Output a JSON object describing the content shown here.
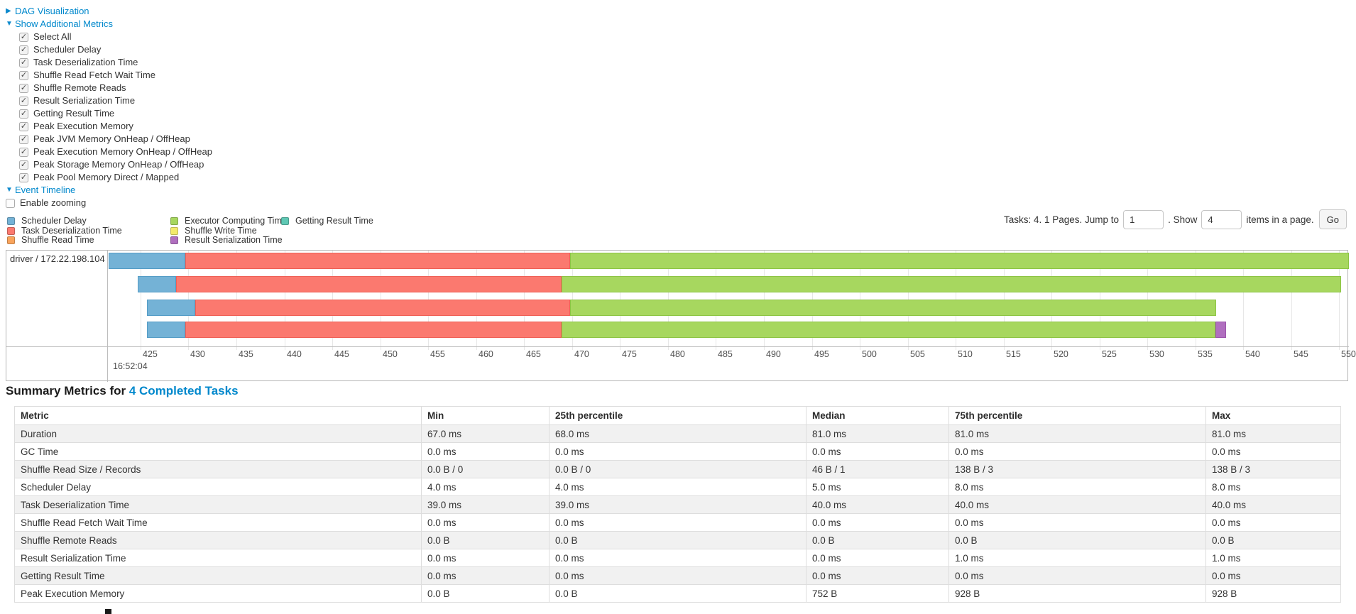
{
  "toggles": {
    "dag": {
      "label": "DAG Visualization",
      "state": "collapsed"
    },
    "metrics": {
      "label": "Show Additional Metrics",
      "state": "expanded"
    },
    "timeline": {
      "label": "Event Timeline",
      "state": "expanded"
    }
  },
  "metrics_panel": {
    "items": [
      "Select All",
      "Scheduler Delay",
      "Task Deserialization Time",
      "Shuffle Read Fetch Wait Time",
      "Shuffle Remote Reads",
      "Result Serialization Time",
      "Getting Result Time",
      "Peak Execution Memory",
      "Peak JVM Memory OnHeap / OffHeap",
      "Peak Execution Memory OnHeap / OffHeap",
      "Peak Storage Memory OnHeap / OffHeap",
      "Peak Pool Memory Direct / Mapped"
    ],
    "all_checked": true
  },
  "enable_zooming": {
    "label": "Enable zooming",
    "checked": false
  },
  "legend": {
    "columns": [
      [
        {
          "label": "Scheduler Delay",
          "color": "#74b2d6"
        },
        {
          "label": "Task Deserialization Time",
          "color": "#fb796f"
        },
        {
          "label": "Shuffle Read Time",
          "color": "#f9a45c"
        }
      ],
      [
        {
          "label": "Executor Computing Time",
          "color": "#a7d75f"
        },
        {
          "label": "Shuffle Write Time",
          "color": "#f3eb6c"
        },
        {
          "label": "Result Serialization Time",
          "color": "#b06fbf"
        }
      ],
      [
        {
          "label": "Getting Result Time",
          "color": "#5fc8b4"
        }
      ]
    ]
  },
  "pagination": {
    "tasks_text": "Tasks: 4. 1 Pages. Jump to",
    "jump_value": "1",
    "show_label": ". Show",
    "show_value": "4",
    "items_text": "items in a page.",
    "go_label": "Go"
  },
  "chart_data": {
    "type": "timeline",
    "group_label": "driver / 172.22.198.104",
    "axis": {
      "start": 421.6,
      "end": 551.0,
      "tick_start": 425,
      "tick_end": 550,
      "tick_step": 5,
      "unit": "ms within second",
      "major_label": "16:52:04"
    },
    "colors": {
      "scheduler_delay": "#74b2d6",
      "task_deserialization": "#fb796f",
      "executor_computing": "#a7d75f",
      "result_serialization": "#b06fbf"
    },
    "borders": {
      "scheduler_delay": "#549cc6",
      "task_deserialization": "#ef5f55",
      "executor_computing": "#8cc443",
      "result_serialization": "#9c55ab"
    },
    "tasks": [
      {
        "segments": [
          {
            "type": "scheduler_delay",
            "start": 421.7,
            "end": 429.7
          },
          {
            "type": "task_deserialization",
            "start": 429.7,
            "end": 469.8
          },
          {
            "type": "executor_computing",
            "start": 469.8,
            "end": 551.5
          }
        ]
      },
      {
        "segments": [
          {
            "type": "scheduler_delay",
            "start": 424.7,
            "end": 428.7
          },
          {
            "type": "task_deserialization",
            "start": 428.7,
            "end": 468.9
          },
          {
            "type": "executor_computing",
            "start": 468.9,
            "end": 550.2
          }
        ]
      },
      {
        "segments": [
          {
            "type": "scheduler_delay",
            "start": 425.7,
            "end": 430.7
          },
          {
            "type": "task_deserialization",
            "start": 430.7,
            "end": 469.8
          },
          {
            "type": "executor_computing",
            "start": 469.8,
            "end": 537.2
          }
        ]
      },
      {
        "segments": [
          {
            "type": "scheduler_delay",
            "start": 425.7,
            "end": 429.7
          },
          {
            "type": "task_deserialization",
            "start": 429.7,
            "end": 468.9
          },
          {
            "type": "executor_computing",
            "start": 468.9,
            "end": 537.1
          },
          {
            "type": "result_serialization",
            "start": 537.1,
            "end": 538.2
          }
        ]
      }
    ]
  },
  "summary": {
    "heading_prefix": "Summary Metrics for ",
    "heading_link": "4 Completed Tasks",
    "table": {
      "headers": [
        "Metric",
        "Min",
        "25th percentile",
        "Median",
        "75th percentile",
        "Max"
      ],
      "rows": [
        [
          "Duration",
          "67.0 ms",
          "68.0 ms",
          "81.0 ms",
          "81.0 ms",
          "81.0 ms"
        ],
        [
          "GC Time",
          "0.0 ms",
          "0.0 ms",
          "0.0 ms",
          "0.0 ms",
          "0.0 ms"
        ],
        [
          "Shuffle Read Size / Records",
          "0.0 B / 0",
          "0.0 B / 0",
          "46 B / 1",
          "138 B / 3",
          "138 B / 3"
        ],
        [
          "Scheduler Delay",
          "4.0 ms",
          "4.0 ms",
          "5.0 ms",
          "8.0 ms",
          "8.0 ms"
        ],
        [
          "Task Deserialization Time",
          "39.0 ms",
          "39.0 ms",
          "40.0 ms",
          "40.0 ms",
          "40.0 ms"
        ],
        [
          "Shuffle Read Fetch Wait Time",
          "0.0 ms",
          "0.0 ms",
          "0.0 ms",
          "0.0 ms",
          "0.0 ms"
        ],
        [
          "Shuffle Remote Reads",
          "0.0 B",
          "0.0 B",
          "0.0 B",
          "0.0 B",
          "0.0 B"
        ],
        [
          "Result Serialization Time",
          "0.0 ms",
          "0.0 ms",
          "0.0 ms",
          "1.0 ms",
          "1.0 ms"
        ],
        [
          "Getting Result Time",
          "0.0 ms",
          "0.0 ms",
          "0.0 ms",
          "0.0 ms",
          "0.0 ms"
        ],
        [
          "Peak Execution Memory",
          "0.0 B",
          "0.0 B",
          "752 B",
          "928 B",
          "928 B"
        ]
      ]
    }
  }
}
